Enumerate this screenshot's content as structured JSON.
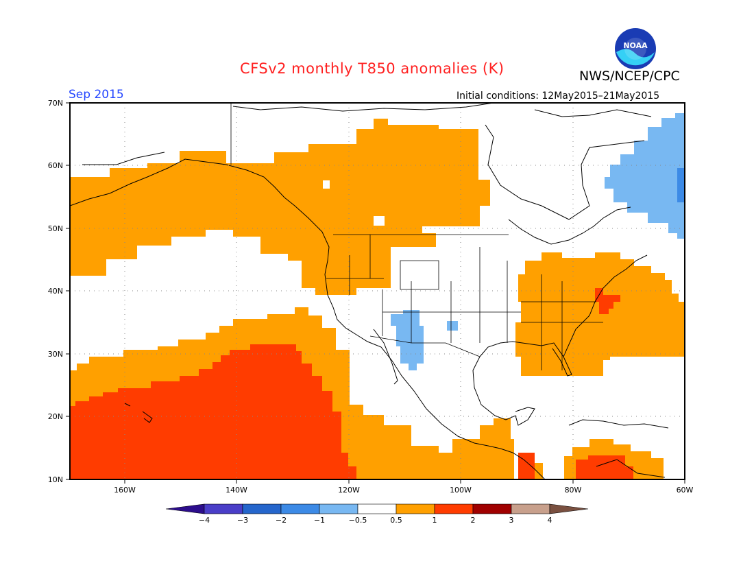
{
  "title": "CFSv2 monthly T850 anomalies (K)",
  "agency": "NWS/NCEP/CPC",
  "valid_month": "Sep 2015",
  "initial_conditions": "Initial conditions: 12May2015–21May2015",
  "logo_text": "NOAA",
  "map": {
    "lon_range": [
      -172,
      -60
    ],
    "lat_range": [
      10,
      70
    ],
    "lat_labels": [
      "70N",
      "60N",
      "50N",
      "40N",
      "30N",
      "20N",
      "10N"
    ],
    "lon_labels": [
      "160W",
      "140W",
      "120W",
      "100W",
      "80W",
      "60W"
    ],
    "gridlines": "dotted"
  },
  "legend": {
    "levels": [
      "-4",
      "-3",
      "-2",
      "-1",
      "-0.5",
      "0.5",
      "1",
      "2",
      "3",
      "4"
    ],
    "colors": [
      "#2c0d8c",
      "#4a3ec8",
      "#2566cc",
      "#3c8ae6",
      "#78b8f2",
      "#ffffff",
      "#ffa000",
      "#ff3c00",
      "#a00000",
      "#c8a08c",
      "#7a5040"
    ]
  },
  "colors": {
    "warm_0_5_1": "#ffa000",
    "warm_1_2": "#ff3c00",
    "cool_m1_m0_5": "#78b8f2",
    "cool_m2_m1": "#3c8ae6"
  }
}
